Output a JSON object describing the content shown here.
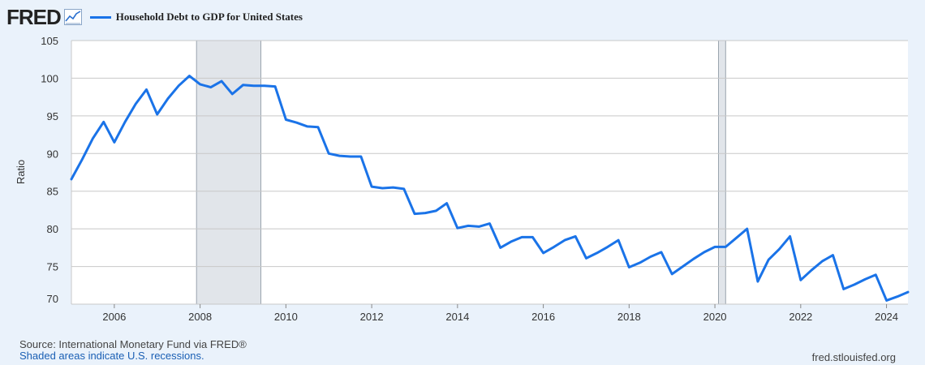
{
  "header": {
    "logo_text": "FRED",
    "logo_mark": "chart-line-icon",
    "series_color": "#1a73e8"
  },
  "footer": {
    "source": "Source: International Monetary Fund via FRED®",
    "note": "Shaded areas indicate U.S. recessions.",
    "url": "fred.stlouisfed.org"
  },
  "chart_data": {
    "type": "line",
    "title": "",
    "xlabel": "",
    "ylabel": "Ratio",
    "ylim": [
      70,
      105
    ],
    "xlim": [
      "2005-01-01",
      "2024-07-01"
    ],
    "yticks": [
      70,
      75,
      80,
      85,
      90,
      95,
      100,
      105
    ],
    "xticks": [
      "2006",
      "2008",
      "2010",
      "2012",
      "2014",
      "2016",
      "2018",
      "2020",
      "2022",
      "2024"
    ],
    "grid": true,
    "legend": "top-left",
    "recessions": [
      {
        "start": "2007-12-01",
        "end": "2009-06-01"
      },
      {
        "start": "2020-02-01",
        "end": "2020-04-01"
      }
    ],
    "series": [
      {
        "name": "Household Debt to GDP for United States",
        "color": "#1a73e8",
        "x": [
          "2005-01-01",
          "2005-04-01",
          "2005-07-01",
          "2005-10-01",
          "2006-01-01",
          "2006-04-01",
          "2006-07-01",
          "2006-10-01",
          "2007-01-01",
          "2007-04-01",
          "2007-07-01",
          "2007-10-01",
          "2008-01-01",
          "2008-04-01",
          "2008-07-01",
          "2008-10-01",
          "2009-01-01",
          "2009-04-01",
          "2009-07-01",
          "2009-10-01",
          "2010-01-01",
          "2010-04-01",
          "2010-07-01",
          "2010-10-01",
          "2011-01-01",
          "2011-04-01",
          "2011-07-01",
          "2011-10-01",
          "2012-01-01",
          "2012-04-01",
          "2012-07-01",
          "2012-10-01",
          "2013-01-01",
          "2013-04-01",
          "2013-07-01",
          "2013-10-01",
          "2014-01-01",
          "2014-04-01",
          "2014-07-01",
          "2014-10-01",
          "2015-01-01",
          "2015-04-01",
          "2015-07-01",
          "2015-10-01",
          "2016-01-01",
          "2016-04-01",
          "2016-07-01",
          "2016-10-01",
          "2017-01-01",
          "2017-04-01",
          "2017-07-01",
          "2017-10-01",
          "2018-01-01",
          "2018-04-01",
          "2018-07-01",
          "2018-10-01",
          "2019-01-01",
          "2019-04-01",
          "2019-07-01",
          "2019-10-01",
          "2020-01-01",
          "2020-04-01",
          "2020-07-01",
          "2020-10-01",
          "2021-01-01",
          "2021-04-01",
          "2021-07-01",
          "2021-10-01",
          "2022-01-01",
          "2022-04-01",
          "2022-07-01",
          "2022-10-01",
          "2023-01-01",
          "2023-04-01",
          "2023-07-01",
          "2023-10-01",
          "2024-01-01",
          "2024-04-01",
          "2024-07-01"
        ],
        "values": [
          86.6,
          89.2,
          92.0,
          94.2,
          91.5,
          94.2,
          96.6,
          98.5,
          95.2,
          97.3,
          99.0,
          100.3,
          99.2,
          98.8,
          99.6,
          97.9,
          99.1,
          99.0,
          99.0,
          98.9,
          94.5,
          94.1,
          93.6,
          93.5,
          90.0,
          89.7,
          89.6,
          89.6,
          85.6,
          85.4,
          85.5,
          85.3,
          82.0,
          82.1,
          82.4,
          83.4,
          80.1,
          80.4,
          80.3,
          80.7,
          77.5,
          78.3,
          78.9,
          78.9,
          76.8,
          77.6,
          78.5,
          79.0,
          76.1,
          76.8,
          77.6,
          78.5,
          74.9,
          75.5,
          76.3,
          76.9,
          74.0,
          75.0,
          76.0,
          76.9,
          77.6,
          77.6,
          78.8,
          80.0,
          73.0,
          75.9,
          77.3,
          79.0,
          73.2,
          74.5,
          75.7,
          76.5,
          72.0,
          72.6,
          73.3,
          73.9,
          70.5,
          71.0,
          71.6
        ]
      }
    ]
  }
}
